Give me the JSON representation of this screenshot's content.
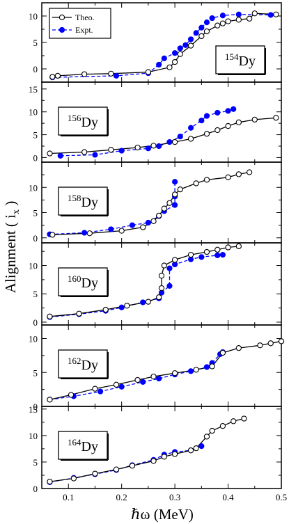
{
  "chart_data": {
    "type": "line",
    "xlabel": "ℏω (MeV)",
    "ylabel": "Alignment ( i",
    "ylabel_sub": "x",
    "ylabel_close": " )",
    "xlim": [
      0.05,
      0.5
    ],
    "x_ticks": [
      "0.1",
      "0.2",
      "0.3",
      "0.4",
      "0.5"
    ],
    "x_tick_values": [
      0.1,
      0.2,
      0.3,
      0.4,
      0.5
    ],
    "legend": {
      "placement": "top-left",
      "theo_label": "Theo.",
      "expt_label": "Expt."
    },
    "colors": {
      "theo": "#000000",
      "expt": "#0000ff"
    },
    "panels": [
      {
        "nucleus_mass": "154",
        "nucleus_symbol": "Dy",
        "ylim": [
          -2.5,
          12.5
        ],
        "y_ticks": [
          "0",
          "5",
          "10"
        ],
        "y_tick_values": [
          0,
          5,
          10
        ],
        "theo": [
          [
            0.07,
            -1.5
          ],
          [
            0.08,
            -1.3
          ],
          [
            0.13,
            -1.0
          ],
          [
            0.18,
            -0.9
          ],
          [
            0.25,
            -0.6
          ],
          [
            0.29,
            0.3
          ],
          [
            0.3,
            1.3
          ],
          [
            0.31,
            2.8
          ],
          [
            0.33,
            4.4
          ],
          [
            0.35,
            6.2
          ],
          [
            0.36,
            7.1
          ],
          [
            0.38,
            8.2
          ],
          [
            0.39,
            8.6
          ],
          [
            0.4,
            9.0
          ],
          [
            0.42,
            9.3
          ],
          [
            0.44,
            9.5
          ],
          [
            0.45,
            10.5
          ],
          [
            0.49,
            10.3
          ]
        ],
        "expt": [
          [
            0.07,
            -1.6
          ],
          [
            0.19,
            -1.3
          ],
          [
            0.25,
            -0.8
          ],
          [
            0.27,
            0.8
          ],
          [
            0.28,
            2.0
          ],
          [
            0.3,
            3.0
          ],
          [
            0.31,
            3.9
          ],
          [
            0.32,
            4.5
          ],
          [
            0.33,
            5.6
          ],
          [
            0.34,
            6.8
          ],
          [
            0.35,
            7.8
          ],
          [
            0.36,
            8.8
          ],
          [
            0.37,
            9.6
          ],
          [
            0.39,
            10.1
          ],
          [
            0.42,
            10.3
          ],
          [
            0.48,
            10.2
          ]
        ]
      },
      {
        "nucleus_mass": "156",
        "nucleus_symbol": "Dy",
        "ylim": [
          -1,
          16.5
        ],
        "y_ticks": [
          "0",
          "5",
          "10",
          "15"
        ],
        "y_tick_values": [
          0,
          5,
          10,
          15
        ],
        "theo": [
          [
            0.065,
            0.9
          ],
          [
            0.13,
            1.2
          ],
          [
            0.18,
            1.7
          ],
          [
            0.23,
            2.2
          ],
          [
            0.26,
            2.6
          ],
          [
            0.3,
            3.4
          ],
          [
            0.33,
            4.1
          ],
          [
            0.36,
            5.2
          ],
          [
            0.38,
            6.0
          ],
          [
            0.4,
            6.9
          ],
          [
            0.42,
            7.7
          ],
          [
            0.45,
            8.3
          ],
          [
            0.49,
            8.7
          ]
        ],
        "expt": [
          [
            0.085,
            0.4
          ],
          [
            0.15,
            0.6
          ],
          [
            0.2,
            1.5
          ],
          [
            0.25,
            2.0
          ],
          [
            0.27,
            2.5
          ],
          [
            0.29,
            3.4
          ],
          [
            0.31,
            4.6
          ],
          [
            0.33,
            6.5
          ],
          [
            0.35,
            8.1
          ],
          [
            0.36,
            9.1
          ],
          [
            0.38,
            9.8
          ],
          [
            0.4,
            10.2
          ],
          [
            0.41,
            10.6
          ]
        ]
      },
      {
        "nucleus_mass": "158",
        "nucleus_symbol": "Dy",
        "ylim": [
          -1,
          15
        ],
        "y_ticks": [
          "0",
          "5",
          "10"
        ],
        "y_tick_values": [
          0,
          5,
          10
        ],
        "theo": [
          [
            0.07,
            0.6
          ],
          [
            0.14,
            0.9
          ],
          [
            0.2,
            1.4
          ],
          [
            0.24,
            2.1
          ],
          [
            0.26,
            3.3
          ],
          [
            0.27,
            4.4
          ],
          [
            0.28,
            5.8
          ],
          [
            0.29,
            6.9
          ],
          [
            0.3,
            8.6
          ],
          [
            0.31,
            9.6
          ],
          [
            0.34,
            10.8
          ],
          [
            0.36,
            11.5
          ],
          [
            0.4,
            12.0
          ],
          [
            0.42,
            12.6
          ],
          [
            0.44,
            13.0
          ]
        ],
        "expt": [
          [
            0.065,
            0.7
          ],
          [
            0.13,
            1.0
          ],
          [
            0.18,
            1.7
          ],
          [
            0.22,
            2.5
          ],
          [
            0.25,
            3.0
          ],
          [
            0.27,
            4.3
          ],
          [
            0.28,
            5.3
          ],
          [
            0.3,
            6.5
          ],
          [
            0.3,
            8.2
          ],
          [
            0.3,
            11.1
          ]
        ]
      },
      {
        "nucleus_mass": "160",
        "nucleus_symbol": "Dy",
        "ylim": [
          -0.5,
          14
        ],
        "y_ticks": [
          "0",
          "5",
          "10"
        ],
        "y_tick_values": [
          0,
          5,
          10
        ],
        "theo": [
          [
            0.065,
            1.0
          ],
          [
            0.12,
            1.5
          ],
          [
            0.17,
            2.2
          ],
          [
            0.21,
            2.9
          ],
          [
            0.25,
            3.6
          ],
          [
            0.27,
            4.4
          ],
          [
            0.275,
            6.0
          ],
          [
            0.275,
            8.2
          ],
          [
            0.28,
            10.0
          ],
          [
            0.3,
            11.0
          ],
          [
            0.33,
            11.9
          ],
          [
            0.36,
            12.4
          ],
          [
            0.38,
            12.8
          ],
          [
            0.4,
            13.2
          ],
          [
            0.42,
            13.4
          ]
        ],
        "expt": [
          [
            0.065,
            0.9
          ],
          [
            0.12,
            1.4
          ],
          [
            0.17,
            2.0
          ],
          [
            0.2,
            2.6
          ],
          [
            0.24,
            3.5
          ],
          [
            0.27,
            4.2
          ],
          [
            0.275,
            5.2
          ],
          [
            0.29,
            6.4
          ],
          [
            0.29,
            9.5
          ],
          [
            0.3,
            10.2
          ],
          [
            0.33,
            11.1
          ],
          [
            0.35,
            11.5
          ],
          [
            0.38,
            11.8
          ],
          [
            0.39,
            11.9
          ]
        ]
      },
      {
        "nucleus_mass": "162",
        "nucleus_symbol": "Dy",
        "ylim": [
          0,
          12
        ],
        "y_ticks": [
          "0",
          "5",
          "10"
        ],
        "y_tick_values": [
          0,
          5,
          10
        ],
        "theo": [
          [
            0.065,
            1.0
          ],
          [
            0.105,
            1.7
          ],
          [
            0.15,
            2.6
          ],
          [
            0.19,
            3.2
          ],
          [
            0.23,
            3.9
          ],
          [
            0.26,
            4.4
          ],
          [
            0.3,
            4.9
          ],
          [
            0.34,
            5.4
          ],
          [
            0.37,
            5.9
          ],
          [
            0.39,
            7.9
          ],
          [
            0.42,
            8.6
          ],
          [
            0.46,
            9.0
          ],
          [
            0.48,
            9.3
          ],
          [
            0.5,
            9.6
          ]
        ],
        "expt": [
          [
            0.065,
            1.0
          ],
          [
            0.11,
            1.5
          ],
          [
            0.16,
            2.2
          ],
          [
            0.2,
            2.9
          ],
          [
            0.24,
            3.6
          ],
          [
            0.27,
            4.1
          ],
          [
            0.3,
            4.7
          ],
          [
            0.33,
            5.2
          ],
          [
            0.36,
            5.8
          ],
          [
            0.37,
            6.4
          ],
          [
            0.385,
            7.7
          ],
          [
            0.39,
            8.0
          ]
        ]
      },
      {
        "nucleus_mass": "164",
        "nucleus_symbol": "Dy",
        "ylim": [
          0,
          15.5
        ],
        "y_ticks": [
          "0",
          "5",
          "10",
          "15"
        ],
        "y_tick_values": [
          0,
          5,
          10,
          15
        ],
        "theo": [
          [
            0.065,
            1.3
          ],
          [
            0.11,
            1.9
          ],
          [
            0.15,
            2.8
          ],
          [
            0.19,
            3.6
          ],
          [
            0.22,
            4.3
          ],
          [
            0.26,
            5.2
          ],
          [
            0.28,
            6.0
          ],
          [
            0.3,
            6.5
          ],
          [
            0.33,
            7.2
          ],
          [
            0.34,
            7.6
          ],
          [
            0.36,
            9.8
          ],
          [
            0.37,
            10.9
          ],
          [
            0.39,
            11.8
          ],
          [
            0.41,
            12.7
          ],
          [
            0.43,
            13.2
          ]
        ],
        "expt": [
          [
            0.065,
            1.2
          ],
          [
            0.11,
            2.0
          ],
          [
            0.15,
            2.7
          ],
          [
            0.19,
            3.5
          ],
          [
            0.22,
            4.4
          ],
          [
            0.26,
            5.4
          ],
          [
            0.28,
            6.4
          ],
          [
            0.3,
            6.9
          ],
          [
            0.33,
            7.2
          ],
          [
            0.35,
            8.0
          ]
        ]
      }
    ]
  }
}
